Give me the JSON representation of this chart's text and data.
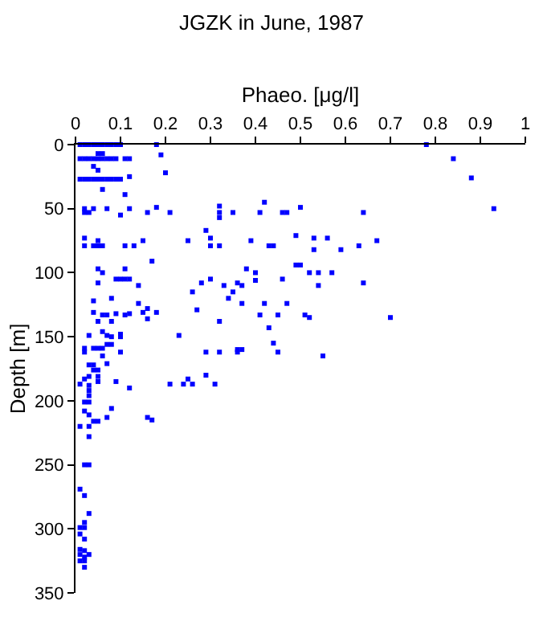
{
  "chart_data": {
    "type": "scatter",
    "title": "JGZK in June, 1987",
    "xlabel": "Phaeo. [μg/l]",
    "ylabel": "Depth [m]",
    "xlim": [
      0,
      1
    ],
    "xticks": [
      0,
      0.1,
      0.2,
      0.3,
      0.4,
      0.5,
      0.6,
      0.7,
      0.8,
      0.9,
      1
    ],
    "ylim": [
      350,
      0
    ],
    "yticks": [
      0,
      50,
      100,
      150,
      200,
      250,
      300,
      350
    ],
    "marker": "square",
    "series": [
      {
        "color": "#0000ff",
        "x": [
          0.01,
          0.02,
          0.03,
          0.04,
          0.05,
          0.06,
          0.07,
          0.08,
          0.09,
          0.1,
          0.18,
          0.78,
          0.05,
          0.06,
          0.19,
          0.84,
          0.01,
          0.02,
          0.03,
          0.04,
          0.05,
          0.06,
          0.07,
          0.08,
          0.09,
          0.11,
          0.12,
          0.04,
          0.05,
          0.2,
          0.12,
          0.01,
          0.02,
          0.03,
          0.04,
          0.05,
          0.06,
          0.07,
          0.08,
          0.09,
          0.1,
          0.88,
          0.06,
          0.11,
          0.42,
          0.32,
          0.18,
          0.5,
          0.02,
          0.04,
          0.07,
          0.12,
          0.93,
          0.02,
          0.03,
          0.16,
          0.21,
          0.32,
          0.35,
          0.41,
          0.46,
          0.47,
          0.64,
          0.1,
          0.32,
          0.29,
          0.49,
          0.02,
          0.3,
          0.53,
          0.56,
          0.05,
          0.15,
          0.25,
          0.39,
          0.67,
          0.02,
          0.04,
          0.05,
          0.06,
          0.11,
          0.13,
          0.3,
          0.32,
          0.43,
          0.44,
          0.63,
          0.53,
          0.59,
          0.17,
          0.49,
          0.5,
          0.05,
          0.11,
          0.38,
          0.06,
          0.4,
          0.52,
          0.54,
          0.57,
          0.09,
          0.1,
          0.11,
          0.12,
          0.3,
          0.46,
          0.4,
          0.05,
          0.28,
          0.36,
          0.64,
          0.14,
          0.33,
          0.37,
          0.54,
          0.26,
          0.35,
          0.08,
          0.34,
          0.04,
          0.14,
          0.37,
          0.42,
          0.47,
          0.16,
          0.27,
          0.04,
          0.15,
          0.18,
          0.12,
          0.09,
          0.06,
          0.07,
          0.11,
          0.41,
          0.45,
          0.51,
          0.52,
          0.7,
          0.16,
          0.05,
          0.08,
          0.32,
          0.43,
          0.06,
          0.1,
          0.03,
          0.07,
          0.23,
          0.08,
          0.1,
          0.44,
          0.07,
          0.08,
          0.02,
          0.04,
          0.05,
          0.06,
          0.37,
          0.36,
          0.02,
          0.1,
          0.29,
          0.32,
          0.36,
          0.45,
          0.06,
          0.55,
          0.07,
          0.03,
          0.04,
          0.04,
          0.05,
          0.29,
          0.03,
          0.05,
          0.02,
          0.25,
          0.05,
          0.09,
          0.01,
          0.21,
          0.24,
          0.26,
          0.31,
          0.03,
          0.12,
          0.03,
          0.03,
          0.02,
          0.03,
          0.08,
          0.02,
          0.03,
          0.07,
          0.16,
          0.17,
          0.04,
          0.05,
          0.01,
          0.03,
          0.03,
          0.02,
          0.03,
          0.01,
          0.02,
          0.03,
          0.02,
          0.01,
          0.02,
          0.01,
          0.02,
          0.01,
          0.02,
          0.01,
          0.03,
          0.02,
          0.01,
          0.02,
          0.02
        ],
        "values": [
          0,
          0,
          0,
          0,
          0,
          0,
          0,
          0,
          0,
          0,
          0,
          0,
          7,
          7,
          8,
          11,
          11,
          11,
          11,
          11,
          11,
          11,
          11,
          11,
          11,
          11,
          11,
          17,
          20,
          22,
          25,
          27,
          27,
          27,
          27,
          27,
          27,
          27,
          27,
          27,
          27,
          26,
          35,
          39,
          45,
          48,
          49,
          49,
          50,
          50,
          50,
          50,
          50,
          53,
          53,
          53,
          53,
          53,
          53,
          53,
          53,
          53,
          53,
          55,
          57,
          67,
          71,
          73,
          73,
          73,
          73,
          75,
          75,
          75,
          75,
          75,
          79,
          79,
          79,
          79,
          79,
          79,
          79,
          79,
          79,
          79,
          79,
          82,
          82,
          91,
          94,
          94,
          97,
          97,
          97,
          100,
          100,
          100,
          100,
          100,
          105,
          105,
          105,
          105,
          105,
          105,
          106,
          108,
          108,
          108,
          108,
          110,
          110,
          110,
          110,
          115,
          115,
          120,
          120,
          122,
          124,
          124,
          124,
          124,
          128,
          129,
          131,
          131,
          131,
          132,
          132,
          133,
          133,
          133,
          133,
          133,
          133,
          135,
          135,
          136,
          138,
          138,
          138,
          143,
          146,
          148,
          149,
          149,
          149,
          150,
          150,
          155,
          156,
          156,
          159,
          159,
          159,
          159,
          160,
          160,
          162,
          162,
          162,
          162,
          162,
          162,
          165,
          165,
          171,
          172,
          172,
          176,
          176,
          180,
          181,
          181,
          183,
          183,
          185,
          185,
          187,
          187,
          187,
          187,
          187,
          188,
          190,
          192,
          196,
          201,
          201,
          206,
          208,
          211,
          213,
          213,
          215,
          216,
          216,
          220,
          220,
          228,
          250,
          250,
          269,
          274,
          288,
          295,
          299,
          299,
          304,
          308,
          316,
          317,
          320,
          320,
          322,
          325,
          325,
          330
        ]
      }
    ]
  }
}
